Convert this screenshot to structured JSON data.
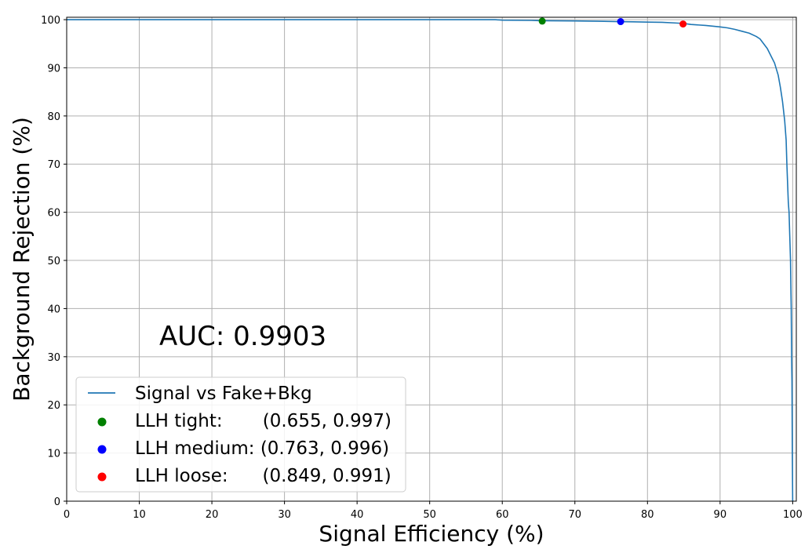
{
  "chart_data": {
    "type": "line",
    "xlabel": "Signal Efficiency (%)",
    "ylabel": "Background Rejection (%)",
    "xlim": [
      0,
      100.5
    ],
    "ylim": [
      0,
      100.5
    ],
    "xticks": [
      0,
      10,
      20,
      30,
      40,
      50,
      60,
      70,
      80,
      90,
      100
    ],
    "yticks": [
      0,
      10,
      20,
      30,
      40,
      50,
      60,
      70,
      80,
      90,
      100
    ],
    "grid": true,
    "legend_placement": "lower-left",
    "annotation": "AUC: 0.9903",
    "series": [
      {
        "name": "Signal vs Fake+Bkg",
        "kind": "line",
        "color": "#1f77b4",
        "x": [
          0,
          59,
          60,
          64,
          65,
          66,
          68,
          70,
          72,
          74,
          76,
          78,
          80,
          82,
          84,
          85,
          86,
          88,
          90,
          91,
          92,
          93,
          94,
          95,
          95.5,
          96,
          96.5,
          97,
          97.5,
          98,
          98.3,
          98.6,
          98.9,
          99.1,
          99.2,
          99.4,
          99.5,
          99.6,
          99.7,
          99.75,
          99.8,
          99.85,
          99.9,
          99.95,
          100
        ],
        "y": [
          100,
          100,
          99.9,
          99.85,
          99.8,
          99.78,
          99.75,
          99.73,
          99.7,
          99.65,
          99.6,
          99.55,
          99.5,
          99.45,
          99.3,
          99.2,
          99.0,
          98.8,
          98.5,
          98.3,
          98.0,
          97.6,
          97.2,
          96.5,
          96.0,
          95.0,
          94.0,
          92.5,
          91.0,
          88.5,
          86.0,
          83.0,
          79.0,
          75.0,
          70.0,
          62.0,
          60.0,
          55.0,
          50.0,
          44.5,
          40.0,
          30.0,
          25.0,
          10.0,
          0
        ]
      },
      {
        "name": "LLH tight:       (0.655, 0.997)",
        "kind": "point",
        "color": "#008000",
        "x": [
          65.5
        ],
        "y": [
          99.7
        ]
      },
      {
        "name": "LLH medium: (0.763, 0.996)",
        "kind": "point",
        "color": "#0000ff",
        "x": [
          76.3
        ],
        "y": [
          99.6
        ]
      },
      {
        "name": "LLH loose:      (0.849, 0.991)",
        "kind": "point",
        "color": "#ff0000",
        "x": [
          84.9
        ],
        "y": [
          99.1
        ]
      }
    ]
  }
}
